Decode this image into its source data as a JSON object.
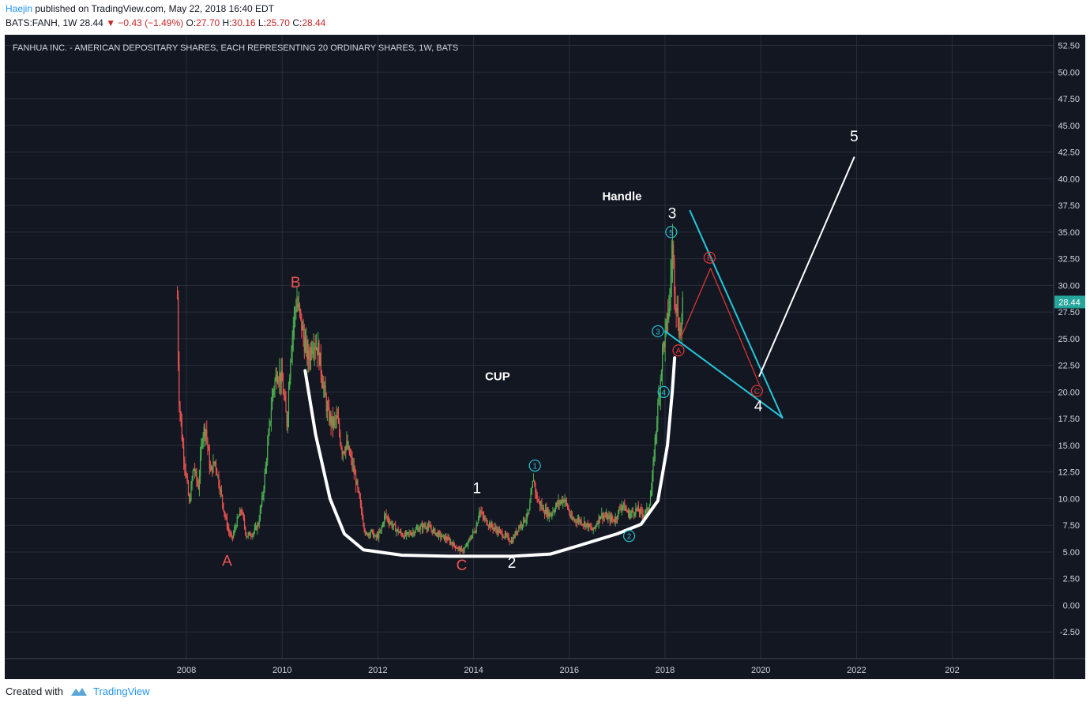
{
  "header": {
    "author": "Haejin",
    "published": "published on TradingView.com, May 22, 2018 16:40 EDT",
    "symbol": "BATS:FANH, 1W",
    "last": "28.44",
    "change_arrow": "▼",
    "change": "−0.43 (−1.49%)",
    "open_label": "O:",
    "open": "27.70",
    "high_label": "H:",
    "high": "30.16",
    "low_label": "L:",
    "low": "25.70",
    "close_label": "C:",
    "close": "28.44"
  },
  "colors": {
    "background": "#131722",
    "up": "#4caf50",
    "down": "#ef5350",
    "wave_cyan": "#26c6da",
    "wave_red": "#e53935",
    "label_red": "#ef5350",
    "white": "#ffffff",
    "price_badge": "#26a69a"
  },
  "footer": {
    "created": "Created with",
    "brand": "TradingView",
    "brand_icon": "tradingview-logo-icon"
  },
  "chart_data": {
    "type": "candlestick",
    "title": "FANHUA INC. - AMERICAN DEPOSITARY SHARES, EACH REPRESENTING 20 ORDINARY SHARES, 1W, BATS",
    "xlabel": "",
    "ylabel": "",
    "xlim": [
      2007.6,
      2022.5
    ],
    "ylim": [
      -5,
      53.5
    ],
    "grid": true,
    "x_ticks": [
      "2008",
      "2010",
      "2012",
      "2014",
      "2016",
      "2018",
      "2020",
      "2022",
      "202"
    ],
    "y_ticks": [
      "52.50",
      "50.00",
      "47.50",
      "45.00",
      "42.50",
      "40.00",
      "37.50",
      "35.00",
      "32.50",
      "30.00",
      "27.50",
      "25.00",
      "22.50",
      "20.00",
      "17.50",
      "15.00",
      "12.50",
      "10.00",
      "7.50",
      "5.00",
      "2.50",
      "0.00",
      "-2.50"
    ],
    "last_price_label": "28.44",
    "price_path": [
      [
        2007.81,
        28.9
      ],
      [
        2007.84,
        20.0
      ],
      [
        2007.92,
        15.0
      ],
      [
        2008.0,
        12.0
      ],
      [
        2008.06,
        9.5
      ],
      [
        2008.15,
        13.0
      ],
      [
        2008.25,
        11.0
      ],
      [
        2008.33,
        16.0
      ],
      [
        2008.4,
        16.8
      ],
      [
        2008.5,
        12.5
      ],
      [
        2008.6,
        13.5
      ],
      [
        2008.7,
        11.0
      ],
      [
        2008.8,
        8.5
      ],
      [
        2008.88,
        7.0
      ],
      [
        2008.95,
        6.2
      ],
      [
        2009.05,
        7.8
      ],
      [
        2009.15,
        9.0
      ],
      [
        2009.25,
        6.5
      ],
      [
        2009.4,
        6.8
      ],
      [
        2009.5,
        7.6
      ],
      [
        2009.6,
        10.5
      ],
      [
        2009.7,
        15.0
      ],
      [
        2009.8,
        20.0
      ],
      [
        2009.9,
        22.0
      ],
      [
        2010.0,
        21.0
      ],
      [
        2010.05,
        19.0
      ],
      [
        2010.1,
        17.0
      ],
      [
        2010.18,
        24.0
      ],
      [
        2010.25,
        27.0
      ],
      [
        2010.3,
        28.5
      ],
      [
        2010.38,
        27.0
      ],
      [
        2010.45,
        25.0
      ],
      [
        2010.55,
        23.0
      ],
      [
        2010.65,
        25.0
      ],
      [
        2010.75,
        24.0
      ],
      [
        2010.85,
        21.0
      ],
      [
        2010.95,
        18.0
      ],
      [
        2011.05,
        17.0
      ],
      [
        2011.15,
        17.5
      ],
      [
        2011.25,
        14.5
      ],
      [
        2011.35,
        15.0
      ],
      [
        2011.45,
        13.5
      ],
      [
        2011.55,
        11.5
      ],
      [
        2011.65,
        9.0
      ],
      [
        2011.75,
        6.5
      ],
      [
        2011.85,
        7.0
      ],
      [
        2011.95,
        6.3
      ],
      [
        2012.05,
        6.8
      ],
      [
        2012.15,
        8.5
      ],
      [
        2012.25,
        7.8
      ],
      [
        2012.4,
        7.0
      ],
      [
        2012.55,
        6.5
      ],
      [
        2012.7,
        6.8
      ],
      [
        2012.85,
        7.2
      ],
      [
        2013.0,
        7.5
      ],
      [
        2013.15,
        7.0
      ],
      [
        2013.3,
        6.5
      ],
      [
        2013.45,
        6.2
      ],
      [
        2013.6,
        5.6
      ],
      [
        2013.75,
        5.1
      ],
      [
        2013.85,
        5.5
      ],
      [
        2013.95,
        6.5
      ],
      [
        2014.05,
        7.2
      ],
      [
        2014.12,
        9.0
      ],
      [
        2014.2,
        8.2
      ],
      [
        2014.35,
        7.5
      ],
      [
        2014.5,
        7.0
      ],
      [
        2014.65,
        6.5
      ],
      [
        2014.8,
        6.0
      ],
      [
        2014.92,
        7.2
      ],
      [
        2015.05,
        8.0
      ],
      [
        2015.15,
        8.5
      ],
      [
        2015.25,
        12.0
      ],
      [
        2015.32,
        10.0
      ],
      [
        2015.45,
        9.0
      ],
      [
        2015.6,
        8.5
      ],
      [
        2015.75,
        9.5
      ],
      [
        2015.9,
        10.0
      ],
      [
        2016.05,
        8.0
      ],
      [
        2016.2,
        8.0
      ],
      [
        2016.35,
        7.6
      ],
      [
        2016.5,
        7.0
      ],
      [
        2016.65,
        8.5
      ],
      [
        2016.8,
        8.2
      ],
      [
        2016.95,
        8.0
      ],
      [
        2017.1,
        9.5
      ],
      [
        2017.25,
        8.5
      ],
      [
        2017.4,
        9.0
      ],
      [
        2017.55,
        8.5
      ],
      [
        2017.65,
        9.0
      ],
      [
        2017.72,
        11.0
      ],
      [
        2017.8,
        16.0
      ],
      [
        2017.88,
        20.0
      ],
      [
        2017.95,
        24.0
      ],
      [
        2018.03,
        26.0
      ],
      [
        2018.1,
        29.0
      ],
      [
        2018.15,
        34.0
      ],
      [
        2018.2,
        30.0
      ],
      [
        2018.26,
        27.0
      ],
      [
        2018.32,
        25.5
      ],
      [
        2018.38,
        28.44
      ]
    ],
    "wave_labels": [
      {
        "text": "A",
        "color": "red",
        "x": 2008.85,
        "y": 3.7
      },
      {
        "text": "B",
        "color": "red",
        "x": 2010.28,
        "y": 29.8
      },
      {
        "text": "C",
        "color": "red",
        "x": 2013.75,
        "y": 3.3
      },
      {
        "text": "1",
        "color": "white",
        "x": 2014.07,
        "y": 10.5
      },
      {
        "text": "2",
        "color": "white",
        "x": 2014.8,
        "y": 3.5
      },
      {
        "text": "3",
        "color": "white",
        "x": 2018.15,
        "y": 36.3
      },
      {
        "text": "4",
        "color": "white",
        "x": 2019.95,
        "y": 18.2
      },
      {
        "text": "5",
        "color": "white",
        "x": 2021.95,
        "y": 43.5
      },
      {
        "text": "Handle",
        "color": "white",
        "x": 2017.1,
        "y": 38.0
      },
      {
        "text": "CUP",
        "color": "white",
        "x": 2014.5,
        "y": 21.1
      }
    ],
    "circled_subwaves": [
      {
        "text": "1",
        "color": "cyan",
        "x": 2015.28,
        "y": 13.1
      },
      {
        "text": "2",
        "color": "cyan",
        "x": 2017.25,
        "y": 6.5
      },
      {
        "text": "3",
        "color": "cyan",
        "x": 2017.85,
        "y": 25.7
      },
      {
        "text": "4",
        "color": "cyan",
        "x": 2017.97,
        "y": 20.0
      },
      {
        "text": "5",
        "color": "cyan",
        "x": 2018.13,
        "y": 35.0
      },
      {
        "text": "A",
        "color": "red",
        "x": 2018.28,
        "y": 23.9
      },
      {
        "text": "B",
        "color": "red",
        "x": 2018.93,
        "y": 32.6
      },
      {
        "text": "C",
        "color": "red",
        "x": 2019.92,
        "y": 20.1
      }
    ],
    "drawings": [
      {
        "name": "cup-curve",
        "color": "white",
        "points": [
          [
            2010.48,
            22.0
          ],
          [
            2010.7,
            16.0
          ],
          [
            2011.0,
            10.0
          ],
          [
            2011.3,
            6.7
          ],
          [
            2011.7,
            5.2
          ],
          [
            2012.5,
            4.7
          ],
          [
            2013.5,
            4.6
          ],
          [
            2014.8,
            4.6
          ],
          [
            2015.6,
            4.8
          ],
          [
            2016.2,
            5.6
          ],
          [
            2017.0,
            6.7
          ],
          [
            2017.5,
            7.6
          ],
          [
            2017.85,
            9.8
          ],
          [
            2018.05,
            15.0
          ],
          [
            2018.15,
            20.0
          ],
          [
            2018.2,
            23.2
          ]
        ]
      },
      {
        "name": "triangle-upper",
        "color": "cyan",
        "points": [
          [
            2018.52,
            37.0
          ],
          [
            2020.45,
            17.6
          ]
        ]
      },
      {
        "name": "triangle-lower",
        "color": "cyan",
        "points": [
          [
            2018.0,
            25.7
          ],
          [
            2020.45,
            17.6
          ]
        ]
      },
      {
        "name": "abc-correction",
        "color": "red",
        "points": [
          [
            2018.32,
            25.0
          ],
          [
            2018.95,
            31.6
          ],
          [
            2019.97,
            20.7
          ]
        ]
      },
      {
        "name": "wave-5-projection",
        "color": "white",
        "points": [
          [
            2019.97,
            21.5
          ],
          [
            2021.95,
            42.0
          ]
        ]
      }
    ]
  }
}
